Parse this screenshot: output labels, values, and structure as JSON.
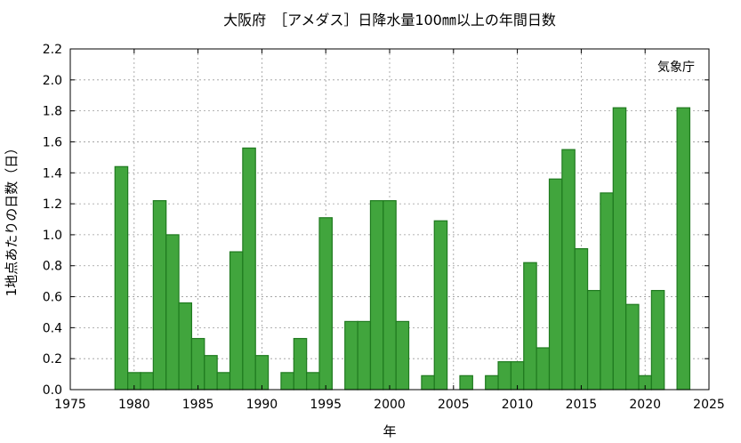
{
  "chart_data": {
    "type": "bar",
    "title": "大阪府　［アメダス］日降水量100㎜以上の年間日数",
    "xlabel": "年",
    "ylabel": "1地点あたりの日数（日）",
    "source_note": "気象庁",
    "xlim": [
      1975,
      2025
    ],
    "ylim": [
      0,
      2.2
    ],
    "x_ticks": [
      "1975",
      "1980",
      "1985",
      "1990",
      "1995",
      "2000",
      "2005",
      "2010",
      "2015",
      "2020",
      "2025"
    ],
    "y_ticks": [
      "0.0",
      "0.2",
      "0.4",
      "0.6",
      "0.8",
      "1.0",
      "1.2",
      "1.4",
      "1.6",
      "1.8",
      "2.0",
      "2.2"
    ],
    "grid": true,
    "bar_color": "#41a53d",
    "bar_edge_color": "#1f7a1f",
    "x": [
      1979,
      1980,
      1981,
      1982,
      1983,
      1984,
      1985,
      1986,
      1987,
      1988,
      1989,
      1990,
      1991,
      1992,
      1993,
      1994,
      1995,
      1996,
      1997,
      1998,
      1999,
      2000,
      2001,
      2002,
      2003,
      2004,
      2005,
      2006,
      2007,
      2008,
      2009,
      2010,
      2011,
      2012,
      2013,
      2014,
      2015,
      2016,
      2017,
      2018,
      2019,
      2020,
      2021,
      2022,
      2023
    ],
    "values": [
      1.44,
      0.11,
      0.11,
      1.22,
      1.0,
      0.56,
      0.33,
      0.22,
      0.11,
      0.89,
      1.56,
      0.22,
      0,
      0.11,
      0.33,
      0.11,
      1.11,
      0,
      0.44,
      0.44,
      1.22,
      1.22,
      0.44,
      0,
      0.09,
      1.09,
      0,
      0.09,
      0,
      0.09,
      0.18,
      0.18,
      0.82,
      0.27,
      1.36,
      1.55,
      0.91,
      0.64,
      1.27,
      1.82,
      0.55,
      0.09,
      0.64,
      0,
      1.82
    ]
  }
}
